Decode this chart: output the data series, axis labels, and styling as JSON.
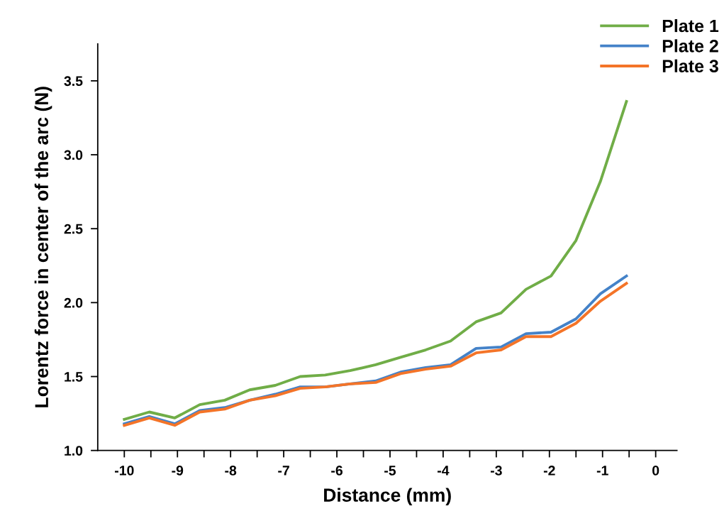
{
  "chart_data": {
    "type": "line",
    "xlabel": "Distance (mm)",
    "ylabel": "Lorentz force in center of the arc (N)",
    "x": [
      -10,
      -9.53,
      -9.05,
      -8.58,
      -8.11,
      -7.64,
      -7.16,
      -6.69,
      -6.22,
      -5.75,
      -5.27,
      -4.8,
      -4.33,
      -3.86,
      -3.38,
      -2.91,
      -2.44,
      -1.97,
      -1.5,
      -1.04,
      -0.55
    ],
    "series": [
      {
        "name": "Plate 1",
        "color": "#70ad47",
        "values": [
          1.21,
          1.26,
          1.22,
          1.31,
          1.34,
          1.41,
          1.44,
          1.5,
          1.51,
          1.54,
          1.58,
          1.63,
          1.68,
          1.74,
          1.87,
          1.93,
          2.09,
          2.18,
          2.42,
          2.82,
          3.36
        ]
      },
      {
        "name": "Plate 2",
        "color": "#4482c8",
        "values": [
          1.18,
          1.23,
          1.18,
          1.27,
          1.29,
          1.34,
          1.38,
          1.43,
          1.43,
          1.45,
          1.47,
          1.53,
          1.56,
          1.58,
          1.69,
          1.7,
          1.79,
          1.8,
          1.89,
          2.06,
          2.18
        ]
      },
      {
        "name": "Plate 3",
        "color": "#f47428",
        "values": [
          1.17,
          1.22,
          1.17,
          1.26,
          1.28,
          1.34,
          1.37,
          1.42,
          1.43,
          1.45,
          1.46,
          1.52,
          1.55,
          1.57,
          1.66,
          1.68,
          1.77,
          1.77,
          1.86,
          2.01,
          2.13
        ]
      }
    ],
    "xlim": [
      -10.5,
      0.4
    ],
    "ylim": [
      1.0,
      3.75
    ],
    "xticks": [
      -10,
      {
        "value": -9.5,
        "label": null
      },
      -9,
      {
        "value": -8.5,
        "label": null
      },
      -8,
      {
        "value": -7.5,
        "label": null
      },
      -7,
      {
        "value": -6.5,
        "label": null
      },
      -6,
      {
        "value": -5.5,
        "label": null
      },
      -5,
      {
        "value": -4.5,
        "label": null
      },
      -4,
      {
        "value": -3.5,
        "label": null
      },
      -3,
      {
        "value": -2.5,
        "label": null
      },
      -2,
      {
        "value": -1.5,
        "label": null
      },
      -1,
      {
        "value": -0.5,
        "label": null
      },
      0
    ],
    "yticks": [
      {
        "value": 1.0,
        "label": "1.0"
      },
      1.5,
      {
        "value": 2.0,
        "label": "2.0"
      },
      2.5,
      {
        "value": 3.0,
        "label": "3.0"
      },
      3.5
    ],
    "grid": false,
    "legend": "top right",
    "marker": "none",
    "line_style": "solid"
  }
}
